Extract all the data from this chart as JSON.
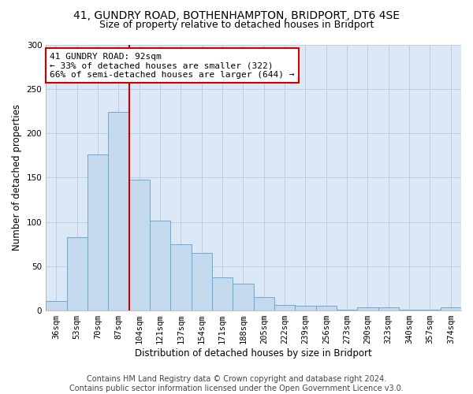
{
  "title_line1": "41, GUNDRY ROAD, BOTHENHAMPTON, BRIDPORT, DT6 4SE",
  "title_line2": "Size of property relative to detached houses in Bridport",
  "xlabel": "Distribution of detached houses by size in Bridport",
  "ylabel": "Number of detached properties",
  "bar_labels": [
    "36sqm",
    "53sqm",
    "70sqm",
    "87sqm",
    "104sqm",
    "121sqm",
    "137sqm",
    "154sqm",
    "171sqm",
    "188sqm",
    "205sqm",
    "222sqm",
    "239sqm",
    "256sqm",
    "273sqm",
    "290sqm",
    "323sqm",
    "340sqm",
    "357sqm",
    "374sqm"
  ],
  "bar_values": [
    11,
    83,
    176,
    224,
    148,
    101,
    75,
    65,
    37,
    30,
    15,
    6,
    5,
    5,
    1,
    4,
    4,
    1,
    1,
    4
  ],
  "bar_color": "#c5d9ee",
  "bar_edge_color": "#6aaad4",
  "ylim": [
    0,
    300
  ],
  "yticks": [
    0,
    50,
    100,
    150,
    200,
    250,
    300
  ],
  "vline_x_index": 3,
  "vline_color": "#cc0000",
  "annotation_title": "41 GUNDRY ROAD: 92sqm",
  "annotation_line1": "← 33% of detached houses are smaller (322)",
  "annotation_line2": "66% of semi-detached houses are larger (644) →",
  "annotation_box_color": "#ffffff",
  "annotation_box_edge_color": "#cc0000",
  "footer_line1": "Contains HM Land Registry data © Crown copyright and database right 2024.",
  "footer_line2": "Contains public sector information licensed under the Open Government Licence v3.0.",
  "background_color": "#ffffff",
  "plot_bg_color": "#dce8f5",
  "grid_color": "#b8cfe0",
  "title_fontsize": 10,
  "subtitle_fontsize": 9,
  "axis_label_fontsize": 8.5,
  "tick_fontsize": 7.5,
  "annotation_fontsize": 8,
  "footer_fontsize": 7
}
